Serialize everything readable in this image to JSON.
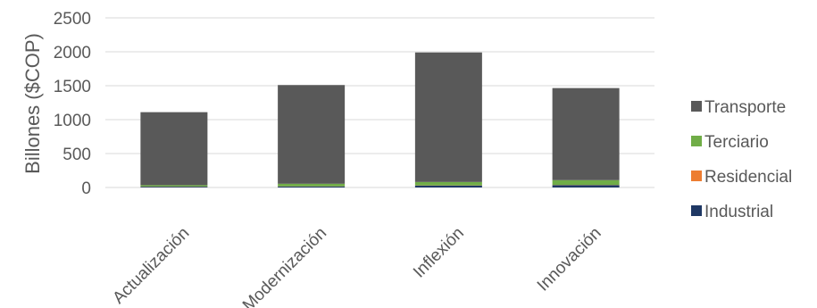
{
  "chart_data": {
    "type": "bar",
    "stacked": true,
    "title": "",
    "xlabel": "",
    "ylabel": "Billones ($COP)",
    "ylim": [
      0,
      2500
    ],
    "yticks": [
      0,
      500,
      1000,
      1500,
      2000,
      2500
    ],
    "categories": [
      "Actualización",
      "Modernización",
      "Inflexión",
      "Innovación"
    ],
    "series": [
      {
        "name": "Industrial",
        "color": "#1f3864",
        "values": [
          12,
          15,
          28,
          35
        ]
      },
      {
        "name": "Residencial",
        "color": "#ed7d31",
        "values": [
          2,
          2,
          3,
          3
        ]
      },
      {
        "name": "Terciario",
        "color": "#70ad47",
        "values": [
          20,
          38,
          50,
          70
        ]
      },
      {
        "name": "Transporte",
        "color": "#595959",
        "values": [
          1076,
          1455,
          1909,
          1357
        ]
      }
    ],
    "legend": {
      "position": "right",
      "order": [
        "Transporte",
        "Terciario",
        "Residencial",
        "Industrial"
      ]
    },
    "grid": true
  }
}
